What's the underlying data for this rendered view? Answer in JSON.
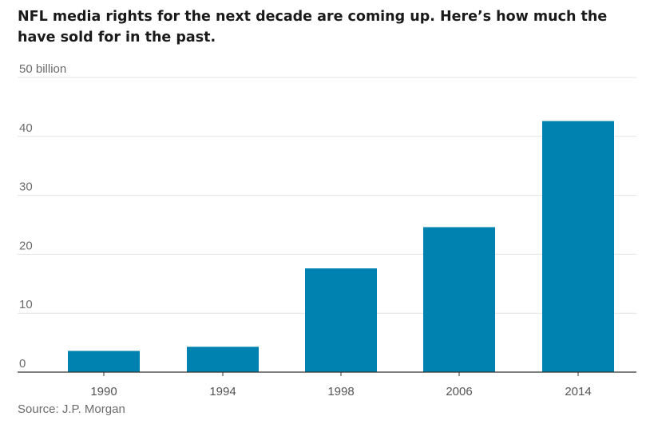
{
  "title": "NFL media rights for the next decade are coming up. Here’s how much the have sold for in the past.",
  "source": "Source: J.P. Morgan",
  "colors": {
    "bar": "#0082B0",
    "grid": "#e3e3e3",
    "axis": "#333333"
  },
  "chart_data": {
    "type": "bar",
    "categories": [
      "1990",
      "1994",
      "1998",
      "2006",
      "2014"
    ],
    "values": [
      3.6,
      4.3,
      17.6,
      24.6,
      42.6
    ],
    "ylim": [
      0,
      50
    ],
    "yticks": [
      0,
      10,
      20,
      30,
      40,
      50
    ],
    "ytick_labels": [
      "0",
      "10",
      "20",
      "30",
      "40",
      "50 billion"
    ],
    "grid": true
  }
}
